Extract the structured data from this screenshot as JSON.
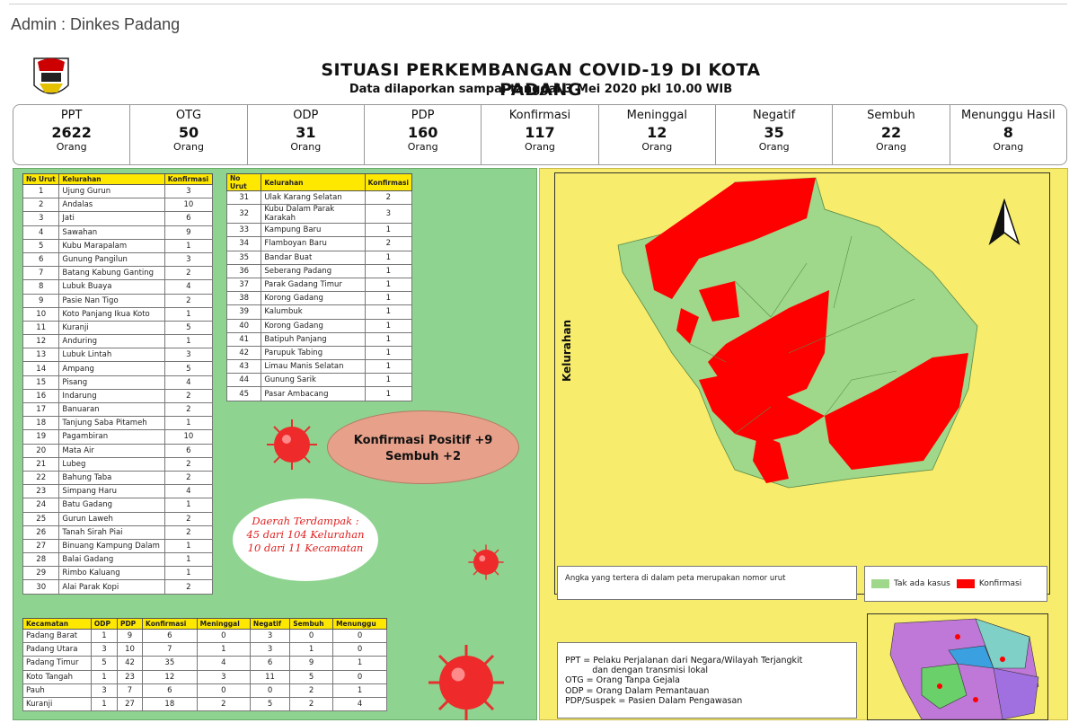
{
  "header": {
    "author": "Admin : Dinkes Padang"
  },
  "poster": {
    "title": "SITUASI PERKEMBANGAN COVID-19 DI KOTA PADANG",
    "subtitle": "Data dilaporkan sampai tanggal 3 Mei 2020 pkl 10.00 WIB",
    "stats": [
      {
        "label": "PPT",
        "value": "2622",
        "unit": "Orang"
      },
      {
        "label": "OTG",
        "value": "50",
        "unit": "Orang"
      },
      {
        "label": "ODP",
        "value": "31",
        "unit": "Orang"
      },
      {
        "label": "PDP",
        "value": "160",
        "unit": "Orang"
      },
      {
        "label": "Konfirmasi",
        "value": "117",
        "unit": "Orang"
      },
      {
        "label": "Meninggal",
        "value": "12",
        "unit": "Orang"
      },
      {
        "label": "Negatif",
        "value": "35",
        "unit": "Orang"
      },
      {
        "label": "Sembuh",
        "value": "22",
        "unit": "Orang"
      },
      {
        "label": "Menunggu Hasil",
        "value": "8",
        "unit": "Orang"
      }
    ],
    "kelurahan_headers": [
      "No Urut",
      "Kelurahan",
      "Konfirmasi"
    ],
    "kelurahan_1": [
      [
        "1",
        "Ujung Gurun",
        "3"
      ],
      [
        "2",
        "Andalas",
        "10"
      ],
      [
        "3",
        "Jati",
        "6"
      ],
      [
        "4",
        "Sawahan",
        "9"
      ],
      [
        "5",
        "Kubu Marapalam",
        "1"
      ],
      [
        "6",
        "Gunung Pangilun",
        "3"
      ],
      [
        "7",
        "Batang Kabung Ganting",
        "2"
      ],
      [
        "8",
        "Lubuk Buaya",
        "4"
      ],
      [
        "9",
        "Pasie Nan Tigo",
        "2"
      ],
      [
        "10",
        "Koto Panjang Ikua Koto",
        "1"
      ],
      [
        "11",
        "Kuranji",
        "5"
      ],
      [
        "12",
        "Anduring",
        "1"
      ],
      [
        "13",
        "Lubuk Lintah",
        "3"
      ],
      [
        "14",
        "Ampang",
        "5"
      ],
      [
        "15",
        "Pisang",
        "4"
      ],
      [
        "16",
        "Indarung",
        "2"
      ],
      [
        "17",
        "Banuaran",
        "2"
      ],
      [
        "18",
        "Tanjung Saba Pitameh",
        "1"
      ],
      [
        "19",
        "Pagambiran",
        "10"
      ],
      [
        "20",
        "Mata Air",
        "6"
      ],
      [
        "21",
        "Lubeg",
        "2"
      ],
      [
        "22",
        "Bahung Taba",
        "2"
      ],
      [
        "23",
        "Simpang Haru",
        "4"
      ],
      [
        "24",
        "Batu Gadang",
        "1"
      ],
      [
        "25",
        "Gurun Laweh",
        "2"
      ],
      [
        "26",
        "Tanah Sirah Piai",
        "2"
      ],
      [
        "27",
        "Binuang Kampung Dalam",
        "1"
      ],
      [
        "28",
        "Balai Gadang",
        "1"
      ],
      [
        "29",
        "Rimbo Kaluang",
        "1"
      ],
      [
        "30",
        "Alai Parak Kopi",
        "2"
      ]
    ],
    "kelurahan_2": [
      [
        "31",
        "Ulak Karang Selatan",
        "2"
      ],
      [
        "32",
        "Kubu Dalam Parak Karakah",
        "3"
      ],
      [
        "33",
        "Kampung Baru",
        "1"
      ],
      [
        "34",
        "Flamboyan Baru",
        "2"
      ],
      [
        "35",
        "Bandar Buat",
        "1"
      ],
      [
        "36",
        "Seberang Padang",
        "1"
      ],
      [
        "37",
        "Parak Gadang Timur",
        "1"
      ],
      [
        "38",
        "Korong Gadang",
        "1"
      ],
      [
        "39",
        "Kalumbuk",
        "1"
      ],
      [
        "40",
        "Korong Gadang",
        "1"
      ],
      [
        "41",
        "Batipuh Panjang",
        "1"
      ],
      [
        "42",
        "Parupuk Tabing",
        "1"
      ],
      [
        "43",
        "Limau Manis Selatan",
        "1"
      ],
      [
        "44",
        "Gunung Sarik",
        "1"
      ],
      [
        "45",
        "Pasar Ambacang",
        "1"
      ]
    ],
    "kecamatan_headers": [
      "Kecamatan",
      "ODP",
      "PDP",
      "Konfirmasi",
      "Meninggal",
      "Negatif",
      "Sembuh",
      "Menunggu"
    ],
    "kecamatan": [
      [
        "Padang Barat",
        "1",
        "9",
        "6",
        "0",
        "3",
        "0",
        "0"
      ],
      [
        "Padang Utara",
        "3",
        "10",
        "7",
        "1",
        "3",
        "1",
        "0"
      ],
      [
        "Padang Timur",
        "5",
        "42",
        "35",
        "4",
        "6",
        "9",
        "1"
      ],
      [
        "Koto Tangah",
        "1",
        "23",
        "12",
        "3",
        "11",
        "5",
        "0"
      ],
      [
        "Pauh",
        "3",
        "7",
        "6",
        "0",
        "0",
        "2",
        "1"
      ],
      [
        "Kuranji",
        "1",
        "27",
        "18",
        "2",
        "5",
        "2",
        "4"
      ]
    ],
    "konfirmasi_positif": "Konfirmasi Positif  +9",
    "sembuh_plus": "Sembuh +2",
    "daerah_1": "Daerah Terdampak :",
    "daerah_2": "45 dari 104 Kelurahan",
    "daerah_3": "10 dari 11 Kecamatan",
    "map": {
      "axis_label": "Kelurahan",
      "note": "Angka yang tertera di dalam peta merupakan nomor urut",
      "legend_none": "Tak ada kasus",
      "legend_confirmed": "Konfirmasi",
      "color_none": "#9fd88a",
      "color_confirmed": "#ff0000"
    },
    "defs": [
      "PPT = Pelaku Perjalanan dari Negara/Wilayah Terjangkit",
      "          dan dengan transmisi lokal",
      "OTG = Orang Tanpa Gejala",
      "ODP = Orang Dalam Pemantauan",
      "PDP/Suspek = Pasien Dalam Pengawasan"
    ]
  }
}
